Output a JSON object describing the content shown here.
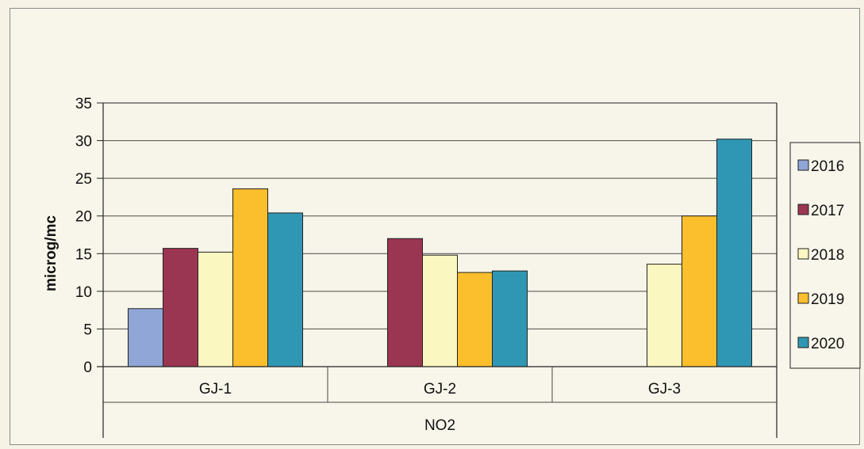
{
  "chart_data": {
    "type": "bar",
    "group_label": "NO2",
    "categories": [
      "GJ-1",
      "GJ-2",
      "GJ-3"
    ],
    "ylabel": "microg/mc",
    "ylim": [
      0,
      35
    ],
    "yticks": [
      "0",
      "5",
      "10",
      "15",
      "20",
      "25",
      "30",
      "35"
    ],
    "ytick_values": [
      0,
      5,
      10,
      15,
      20,
      25,
      30,
      35
    ],
    "grid": true,
    "legend_position": "right",
    "series": [
      {
        "name": "2016",
        "color": "#8fa6d6",
        "values": [
          7.7,
          null,
          null
        ]
      },
      {
        "name": "2017",
        "color": "#9b3652",
        "values": [
          15.7,
          17.0,
          null
        ]
      },
      {
        "name": "2018",
        "color": "#fbf7c0",
        "values": [
          15.2,
          14.8,
          13.6
        ]
      },
      {
        "name": "2019",
        "color": "#fbbf2d",
        "values": [
          23.6,
          12.5,
          20.0
        ]
      },
      {
        "name": "2020",
        "color": "#2f97b4",
        "values": [
          20.4,
          12.7,
          30.2
        ]
      }
    ]
  }
}
